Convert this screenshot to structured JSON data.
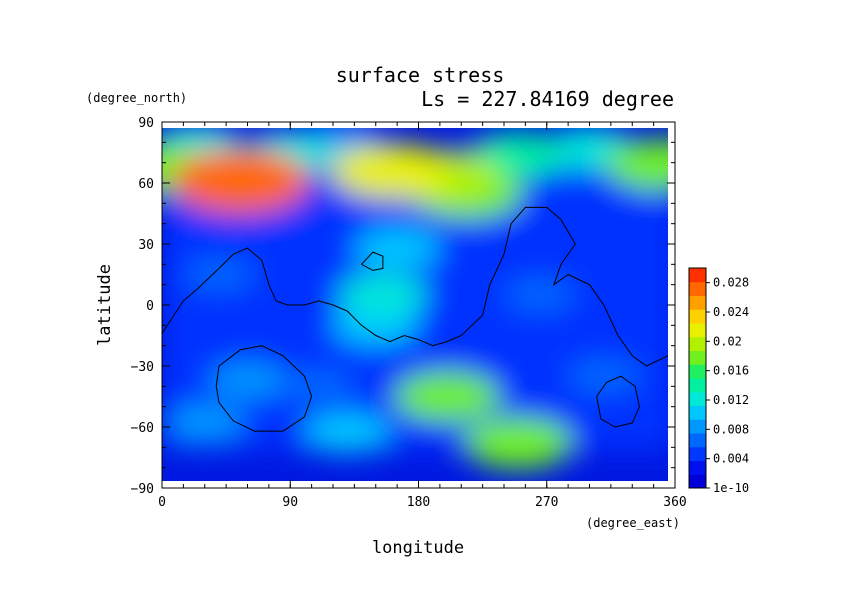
{
  "chart_data": {
    "type": "heatmap",
    "title": "surface stress",
    "subtitle": "Ls = 227.84169 degree",
    "xlabel": "longitude",
    "ylabel": "latitude",
    "xunit": "(degree_east)",
    "yunit": "(degree_north)",
    "xlim": [
      0,
      360
    ],
    "ylim": [
      -90,
      90
    ],
    "xticks": [
      "0",
      "90",
      "180",
      "270",
      "360"
    ],
    "yticks": [
      "90",
      "60",
      "30",
      "0",
      "−30",
      "−60",
      "−90"
    ],
    "colorbar": {
      "range": [
        0,
        0.03
      ],
      "tick_values": [
        0,
        0.004,
        0.008,
        0.012,
        0.016,
        0.02,
        0.024,
        0.028
      ],
      "tick_labels": [
        "1e-10",
        "0.004",
        "0.008",
        "0.012",
        "0.016",
        "0.02",
        "0.024",
        "0.028"
      ],
      "colors": [
        "#0000d8",
        "#0010f0",
        "#0038ff",
        "#0068ff",
        "#0098ff",
        "#00c8ff",
        "#00e8d8",
        "#00f0a0",
        "#20f060",
        "#70f020",
        "#b0f000",
        "#e8f000",
        "#ffd000",
        "#ffa000",
        "#ff6800",
        "#ff3000"
      ]
    },
    "field": [
      {
        "lon": 0,
        "lat": 67,
        "value": 0.017
      },
      {
        "lon": 25,
        "lat": 78,
        "value": 0.012
      },
      {
        "lon": 55,
        "lat": 61,
        "value": 0.027
      },
      {
        "lon": 90,
        "lat": 75,
        "value": 0.012
      },
      {
        "lon": 125,
        "lat": 80,
        "value": 0.009
      },
      {
        "lon": 160,
        "lat": 66,
        "value": 0.021
      },
      {
        "lon": 195,
        "lat": 63,
        "value": 0.02
      },
      {
        "lon": 215,
        "lat": 55,
        "value": 0.018
      },
      {
        "lon": 250,
        "lat": 74,
        "value": 0.014
      },
      {
        "lon": 300,
        "lat": 77,
        "value": 0.012
      },
      {
        "lon": 350,
        "lat": 69,
        "value": 0.018
      },
      {
        "lon": 165,
        "lat": 28,
        "value": 0.011
      },
      {
        "lon": 155,
        "lat": 5,
        "value": 0.012
      },
      {
        "lon": 150,
        "lat": -10,
        "value": 0.011
      },
      {
        "lon": 200,
        "lat": -45,
        "value": 0.017
      },
      {
        "lon": 250,
        "lat": -68,
        "value": 0.018
      },
      {
        "lon": 130,
        "lat": -63,
        "value": 0.011
      },
      {
        "lon": 30,
        "lat": -58,
        "value": 0.009
      },
      {
        "lon": 60,
        "lat": -37,
        "value": 0.008
      },
      {
        "lon": 110,
        "lat": -40,
        "value": 0.007
      },
      {
        "lon": 310,
        "lat": -35,
        "value": 0.007
      },
      {
        "lon": 40,
        "lat": 15,
        "value": 0.006
      },
      {
        "lon": 265,
        "lat": 5,
        "value": 0.006
      }
    ],
    "contours": [
      [
        [
          0,
          -14
        ],
        [
          15,
          2
        ],
        [
          25,
          8
        ],
        [
          40,
          18
        ],
        [
          50,
          25
        ],
        [
          60,
          28
        ],
        [
          70,
          22
        ],
        [
          75,
          10
        ],
        [
          80,
          2
        ],
        [
          88,
          0
        ],
        [
          100,
          0
        ],
        [
          110,
          2
        ],
        [
          120,
          0
        ],
        [
          130,
          -3
        ],
        [
          140,
          -10
        ],
        [
          150,
          -15
        ],
        [
          160,
          -18
        ],
        [
          170,
          -15
        ],
        [
          180,
          -17
        ],
        [
          190,
          -20
        ],
        [
          200,
          -18
        ],
        [
          210,
          -15
        ],
        [
          225,
          -5
        ],
        [
          230,
          10
        ],
        [
          240,
          25
        ],
        [
          245,
          40
        ],
        [
          255,
          48
        ],
        [
          270,
          48
        ],
        [
          280,
          42
        ],
        [
          290,
          30
        ],
        [
          280,
          20
        ],
        [
          275,
          10
        ],
        [
          285,
          15
        ],
        [
          300,
          10
        ],
        [
          310,
          0
        ],
        [
          320,
          -15
        ],
        [
          330,
          -25
        ],
        [
          340,
          -30
        ],
        [
          355,
          -25
        ],
        [
          360,
          -20
        ]
      ],
      [
        [
          140,
          20
        ],
        [
          148,
          26
        ],
        [
          155,
          24
        ],
        [
          155,
          18
        ],
        [
          148,
          17
        ],
        [
          140,
          20
        ]
      ],
      [
        [
          40,
          -30
        ],
        [
          55,
          -22
        ],
        [
          70,
          -20
        ],
        [
          85,
          -25
        ],
        [
          100,
          -35
        ],
        [
          105,
          -45
        ],
        [
          100,
          -55
        ],
        [
          85,
          -62
        ],
        [
          65,
          -62
        ],
        [
          50,
          -57
        ],
        [
          40,
          -48
        ],
        [
          38,
          -40
        ],
        [
          40,
          -30
        ]
      ],
      [
        [
          305,
          -45
        ],
        [
          312,
          -38
        ],
        [
          322,
          -35
        ],
        [
          332,
          -40
        ],
        [
          335,
          -50
        ],
        [
          330,
          -58
        ],
        [
          318,
          -60
        ],
        [
          308,
          -56
        ],
        [
          305,
          -45
        ]
      ]
    ]
  }
}
